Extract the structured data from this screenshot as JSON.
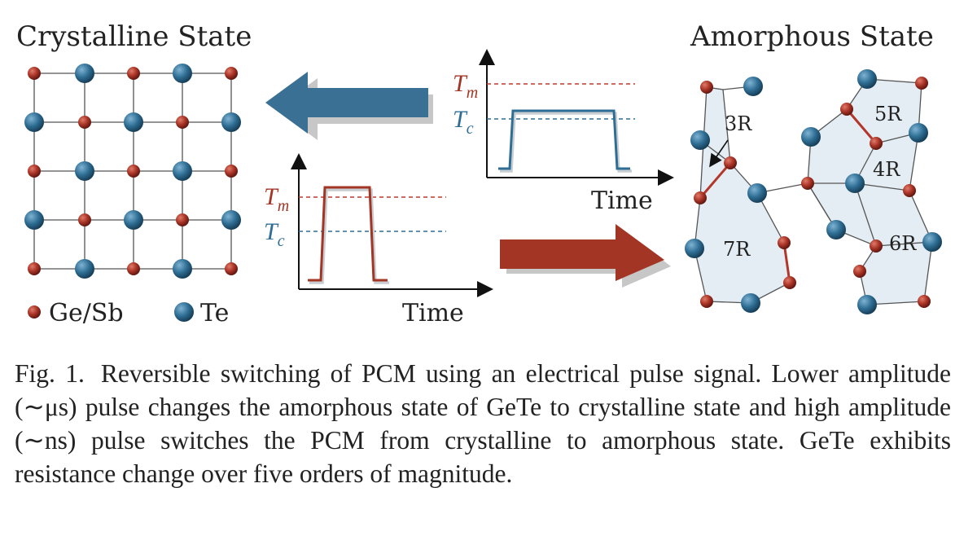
{
  "figure": {
    "crystalline_title": "Crystalline State",
    "amorphous_title": "Amorphous State",
    "legend": {
      "gesb_label": "Ge/Sb",
      "te_label": "Te"
    },
    "pulse_plots": [
      {
        "id": "set",
        "axis_label": "Time",
        "tm_label": "T",
        "tm_sub": "m",
        "tc_label": "T",
        "tc_sub": "c"
      },
      {
        "id": "reset",
        "axis_label": "Time",
        "tm_label": "T",
        "tm_sub": "m",
        "tc_label": "T",
        "tc_sub": "c"
      }
    ],
    "ring_labels": [
      "3R",
      "5R",
      "4R",
      "7R",
      "6R"
    ],
    "colors": {
      "gesb": "#a83325",
      "te": "#2f6e94",
      "region_fill": "#e4eef3",
      "bond": "#555555"
    }
  },
  "caption": {
    "fig_number": "Fig. 1.",
    "text": "Reversible switching of PCM using an electrical pulse signal. Lower amplitude (∼μs) pulse changes the amorphous state of GeTe to crystalline state and high amplitude (∼ns) pulse switches the PCM from crystalline to amorphous state. GeTe exhibits resistance change over five orders of magnitude."
  }
}
